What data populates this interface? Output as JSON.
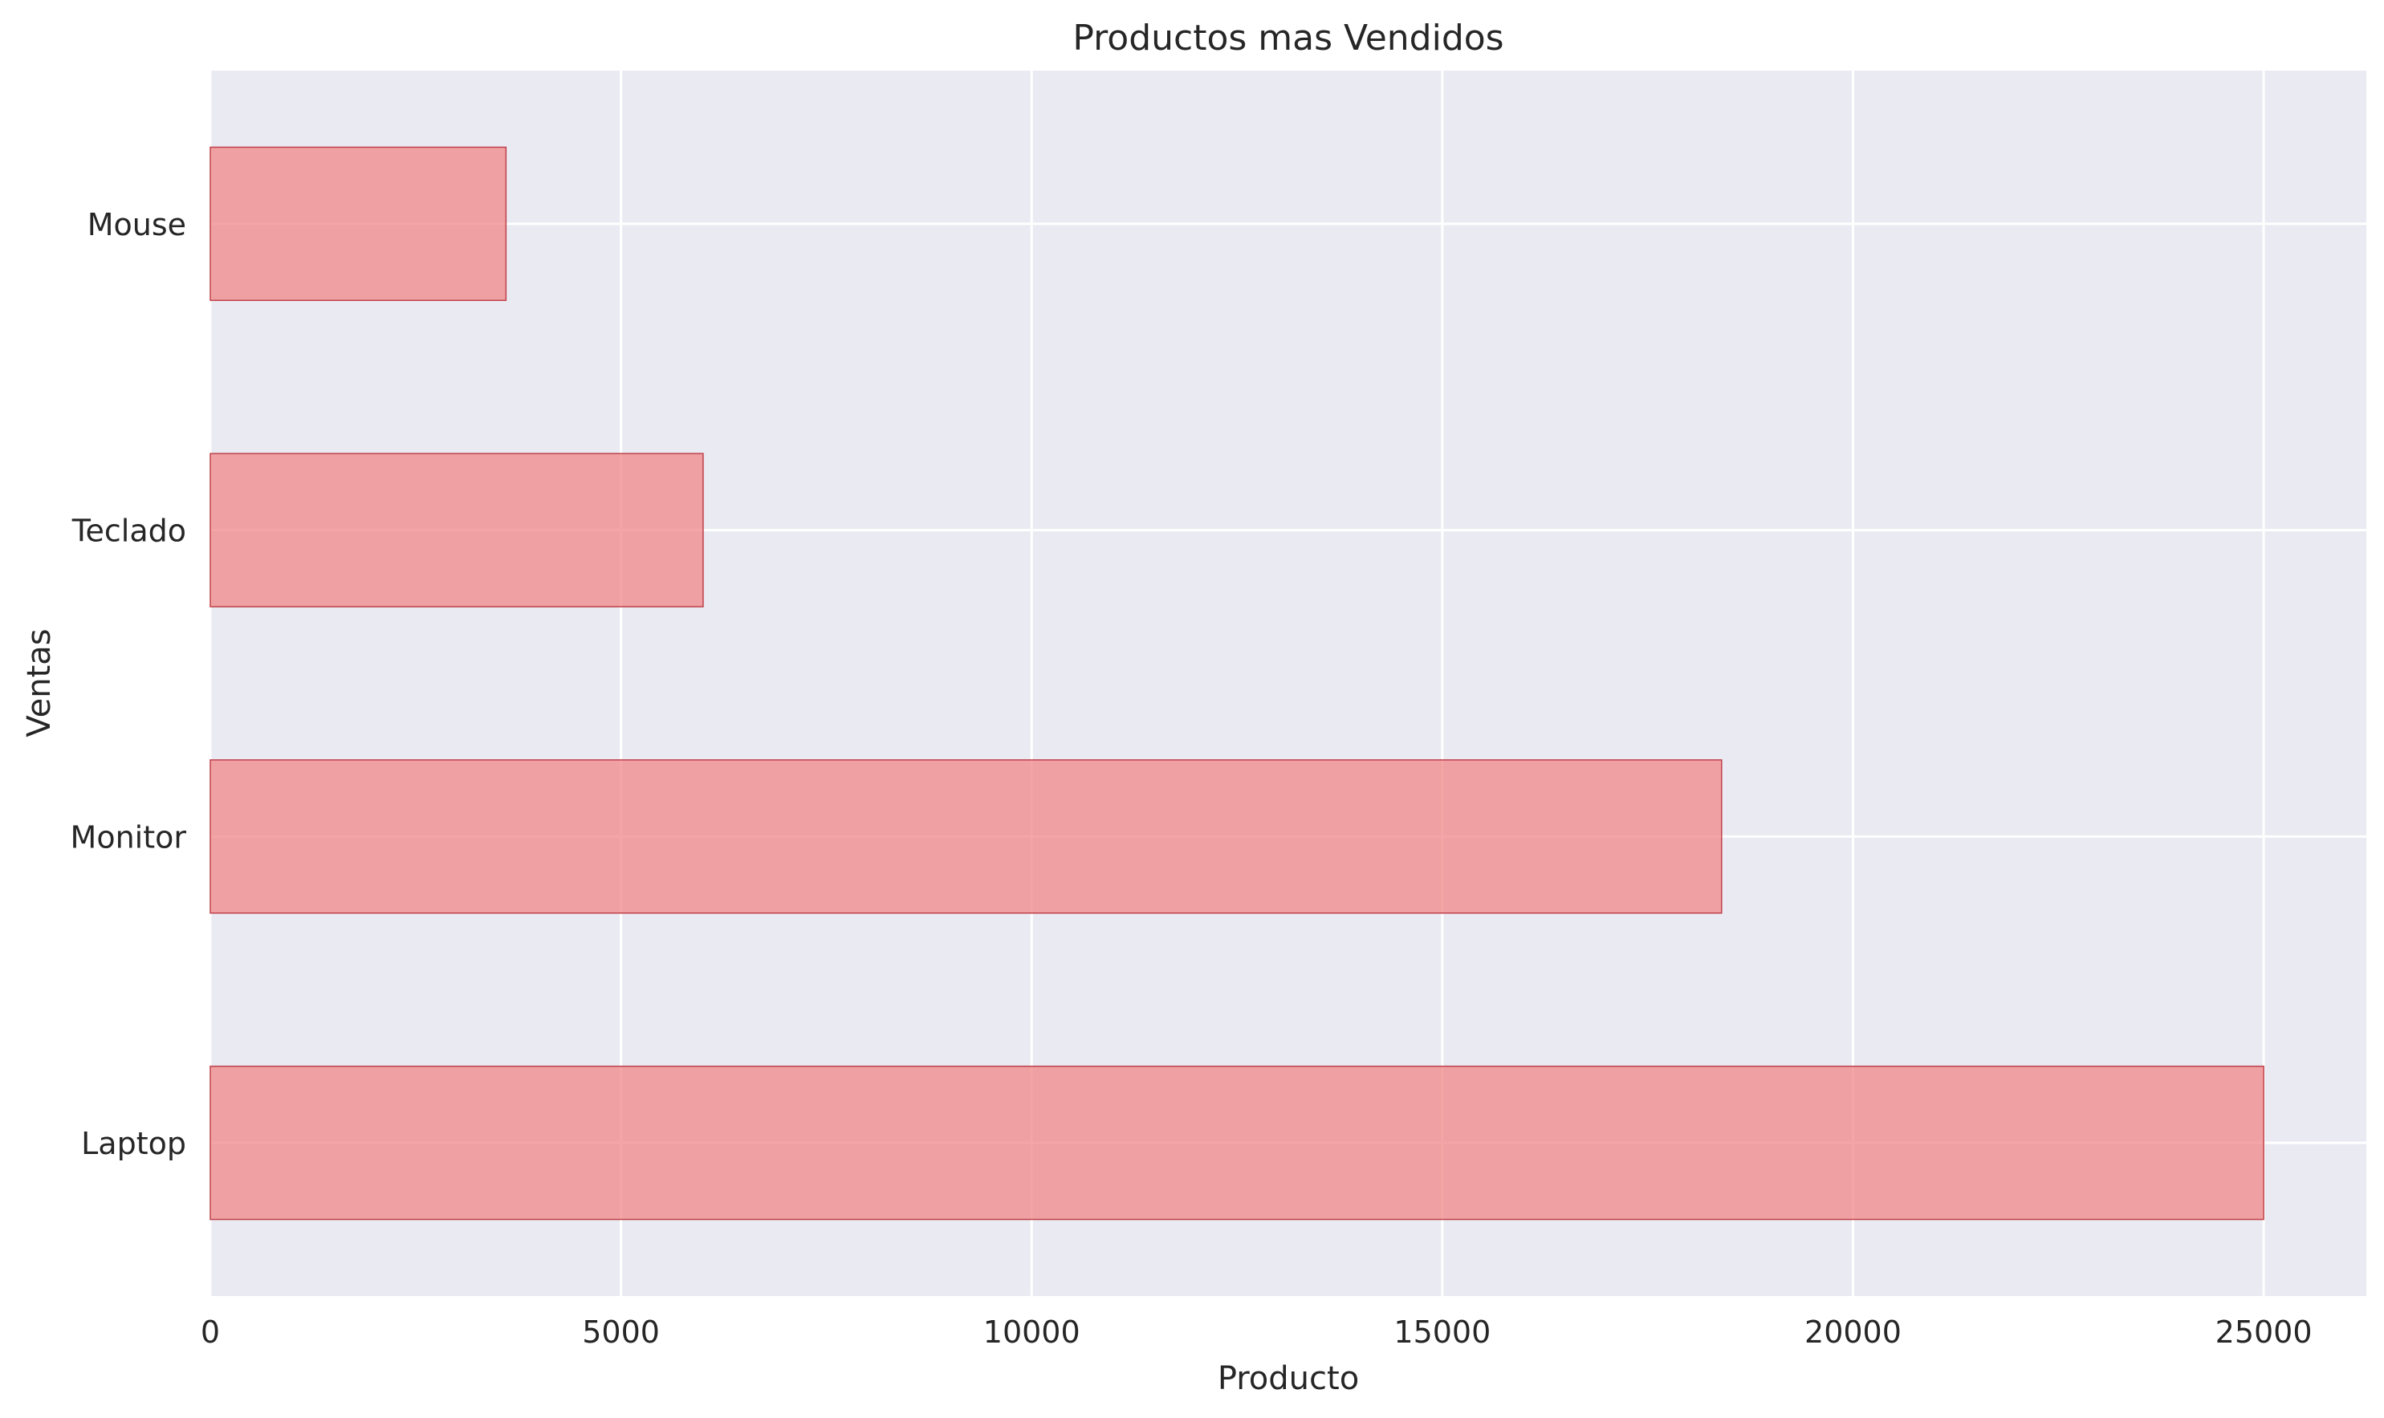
{
  "chart_data": {
    "type": "bar",
    "orientation": "horizontal",
    "title": "Productos mas Vendidos",
    "xlabel": "Producto",
    "ylabel": "Ventas",
    "categories": [
      "Laptop",
      "Monitor",
      "Teclado",
      "Mouse"
    ],
    "values": [
      25000,
      18400,
      6000,
      3600
    ],
    "xlim": [
      0,
      26250
    ],
    "xticks": [
      0,
      5000,
      10000,
      15000,
      20000,
      25000
    ],
    "grid": true,
    "legend": "none",
    "colors": {
      "bar_fill": "#F08080",
      "bar_edge": "#C0404A",
      "plot_background": "#EAEAF2",
      "grid": "#FFFFFF"
    }
  }
}
